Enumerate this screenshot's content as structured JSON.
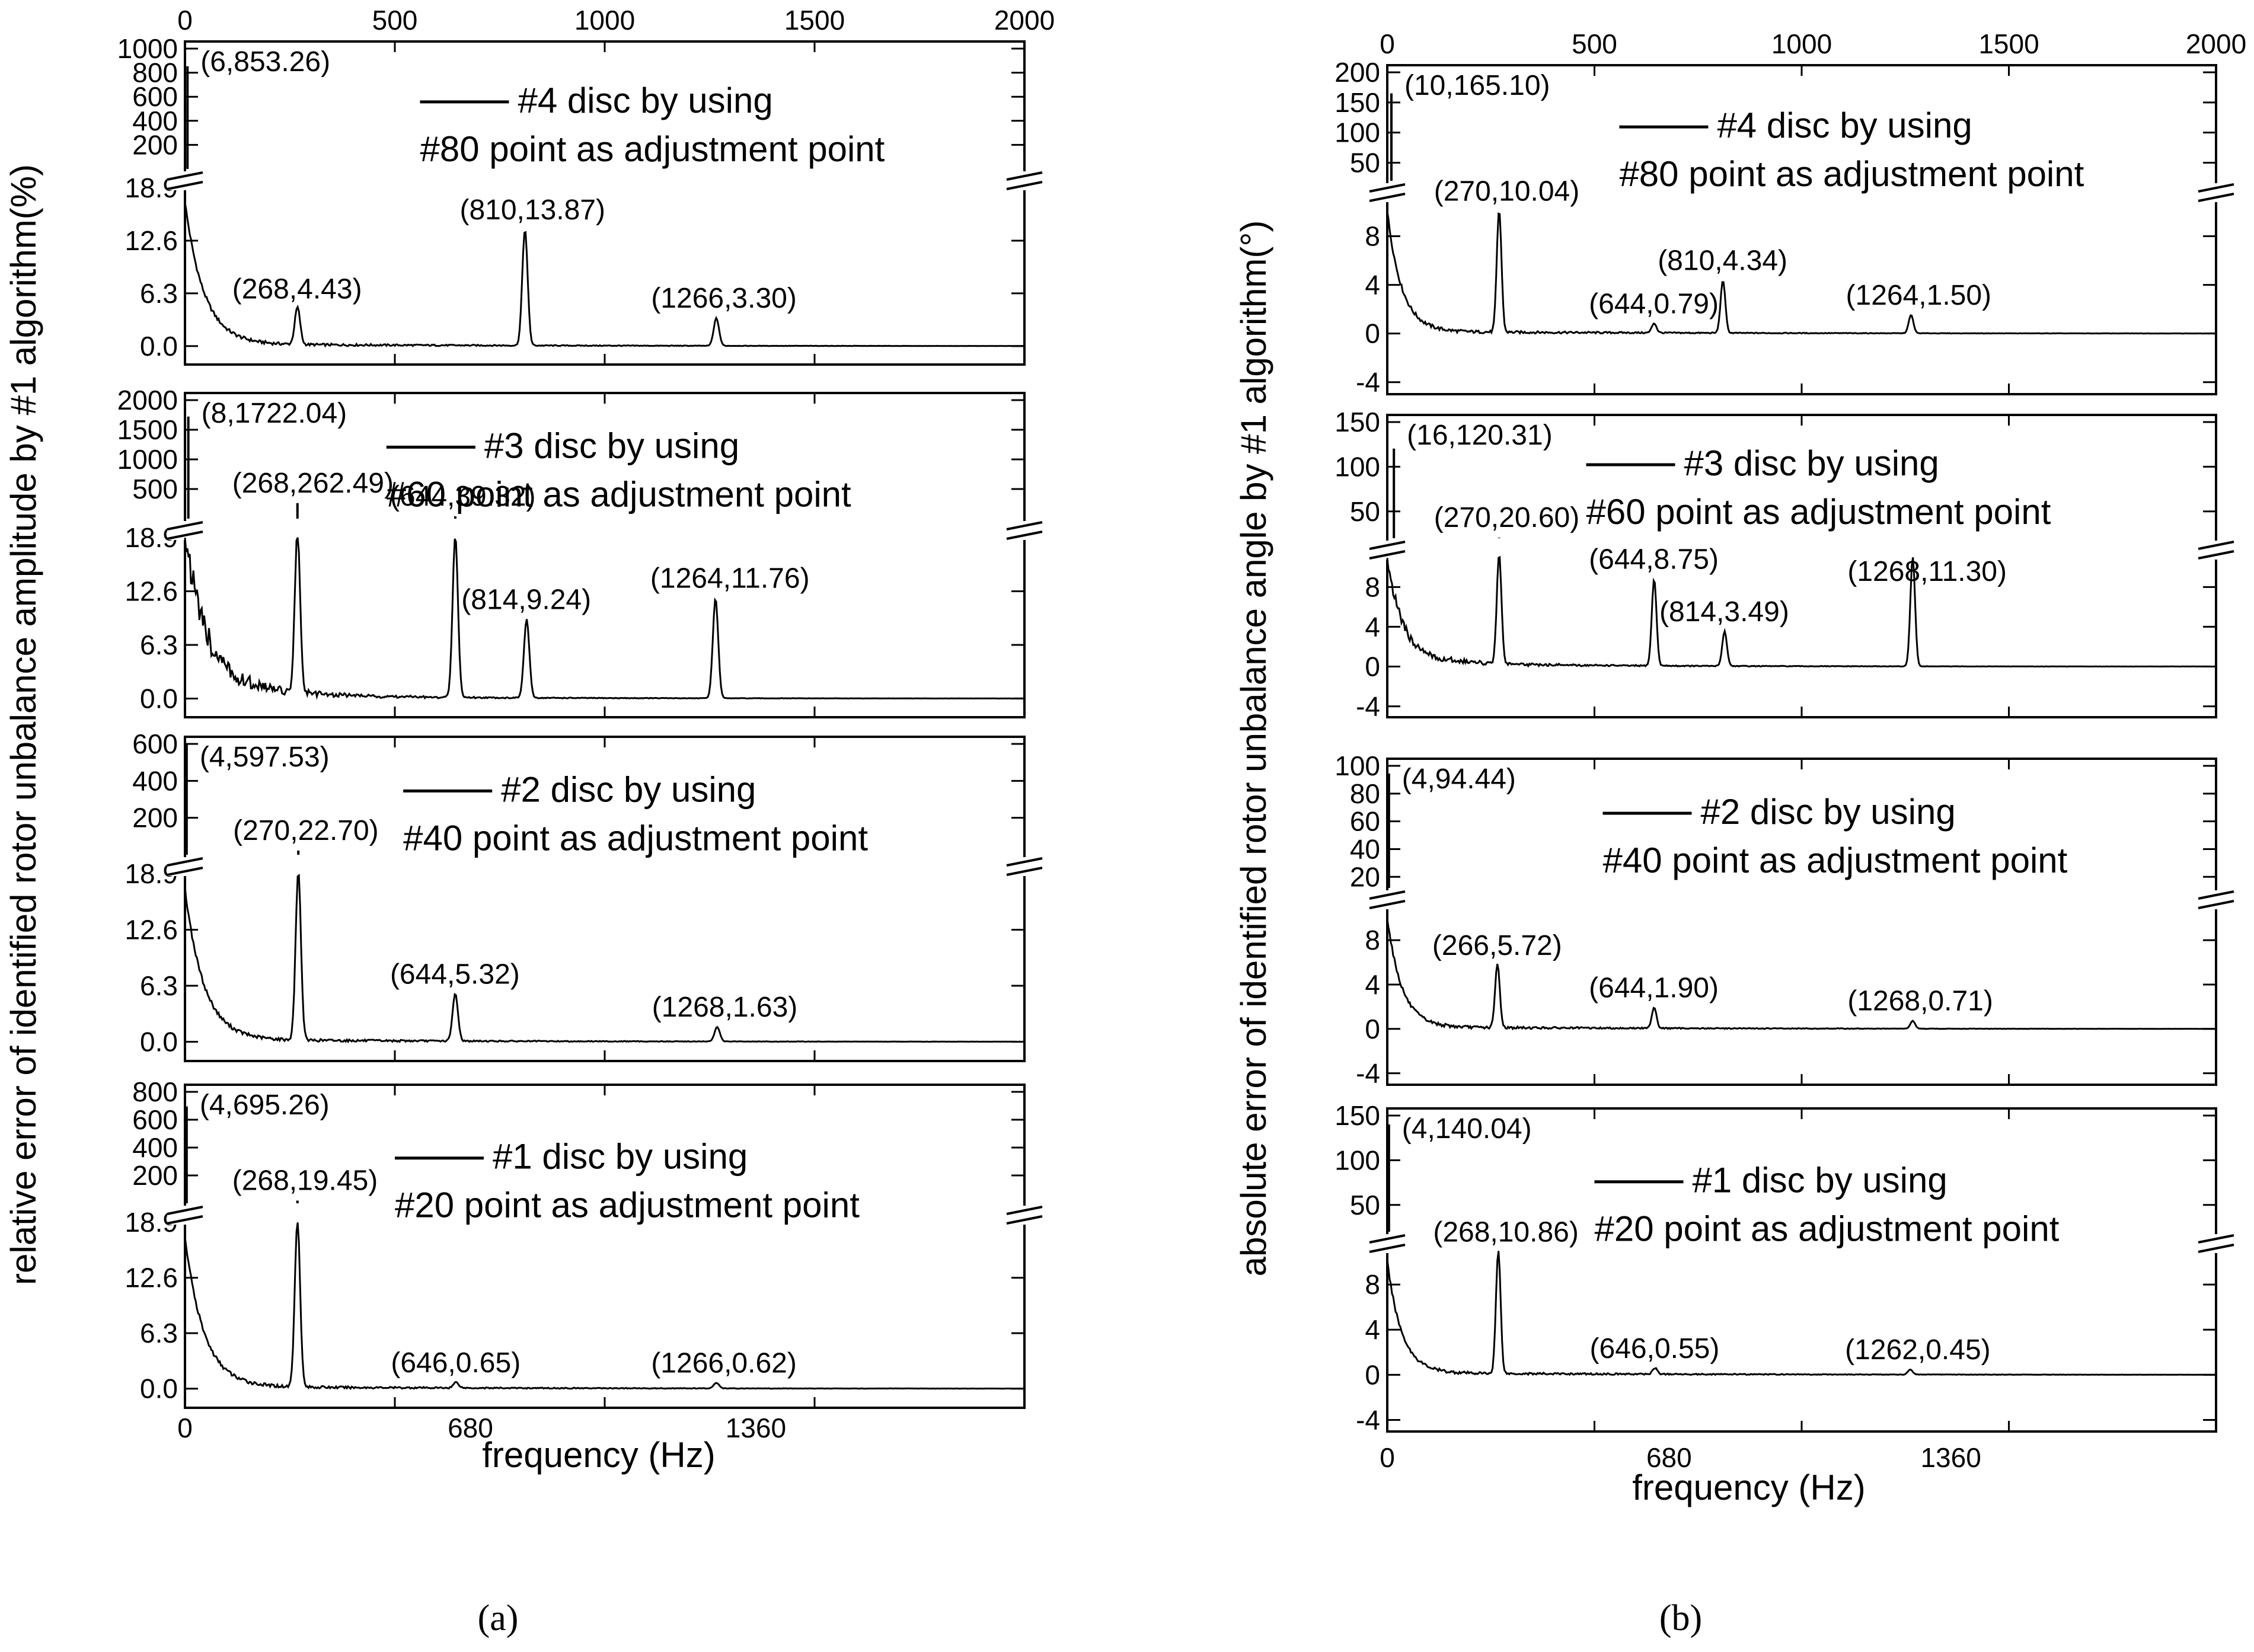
{
  "chart_data": {
    "type": "line",
    "x_label": "frequency (Hz)",
    "panels": [
      {
        "caption": "(a)",
        "y_label": "relative error of identified rotor unbalance amplitude by #1 algorithm(%)",
        "top_axis_ticks": [
          0,
          500,
          1000,
          1500,
          2000
        ],
        "top_axis_labels": [
          "0",
          "500",
          "1000",
          "1500",
          "2000"
        ],
        "bottom_axis_ticks": [
          0,
          680,
          1360
        ],
        "bottom_axis_labels": [
          "0",
          "680",
          "1360"
        ],
        "xlim": [
          0,
          2000
        ],
        "subplots": [
          {
            "legend": [
              "#4 disc by using",
              "#80 point as adjustment point"
            ],
            "upper_ticks": [
              200,
              400,
              600,
              800,
              1000
            ],
            "upper_labels": [
              "200",
              "400",
              "600",
              "800",
              "1000"
            ],
            "upper_range": [
              0,
              1000
            ],
            "lower_ticks": [
              0,
              6.3,
              12.6,
              18.9
            ],
            "lower_labels": [
              "0.0",
              "6.3",
              "12.6",
              "18.9"
            ],
            "lower_range": [
              -1.5,
              18.9
            ],
            "peaks": [
              {
                "x": 6,
                "y": 853.26,
                "label": "(6,853.26)"
              },
              {
                "x": 268,
                "y": 4.43,
                "label": "(268,4.43)"
              },
              {
                "x": 810,
                "y": 13.87,
                "label": "(810,13.87)"
              },
              {
                "x": 1266,
                "y": 3.3,
                "label": "(1266,3.30)"
              }
            ]
          },
          {
            "legend": [
              "#3 disc by using",
              "#60 point as adjustment point"
            ],
            "upper_ticks": [
              500,
              1000,
              1500,
              2000
            ],
            "upper_labels": [
              "500",
              "1000",
              "1500",
              "2000"
            ],
            "upper_range": [
              0,
              2000
            ],
            "lower_ticks": [
              0,
              6.3,
              12.6,
              18.9
            ],
            "lower_labels": [
              "0.0",
              "6.3",
              "12.6",
              "18.9"
            ],
            "lower_range": [
              -1.5,
              18.9
            ],
            "peaks": [
              {
                "x": 8,
                "y": 1722.04,
                "label": "(8,1722.04)"
              },
              {
                "x": 268,
                "y": 262.49,
                "label": "(268,262.49)"
              },
              {
                "x": 644,
                "y": 39.32,
                "label": "(644,39.32)"
              },
              {
                "x": 814,
                "y": 9.24,
                "label": "(814,9.24)"
              },
              {
                "x": 1264,
                "y": 11.76,
                "label": "(1264,11.76)"
              }
            ]
          },
          {
            "legend": [
              "#2 disc by using",
              "#40 point as adjustment point"
            ],
            "upper_ticks": [
              200,
              400,
              600
            ],
            "upper_labels": [
              "200",
              "400",
              "600"
            ],
            "upper_range": [
              0,
              600
            ],
            "lower_ticks": [
              0,
              6.3,
              12.6,
              18.9
            ],
            "lower_labels": [
              "0.0",
              "6.3",
              "12.6",
              "18.9"
            ],
            "lower_range": [
              -1.5,
              18.9
            ],
            "peaks": [
              {
                "x": 4,
                "y": 597.53,
                "label": "(4,597.53)"
              },
              {
                "x": 270,
                "y": 22.7,
                "label": "(270,22.70)"
              },
              {
                "x": 644,
                "y": 5.32,
                "label": "(644,5.32)"
              },
              {
                "x": 1268,
                "y": 1.63,
                "label": "(1268,1.63)"
              }
            ]
          },
          {
            "legend": [
              "#1 disc by using",
              "#20 point as adjustment point"
            ],
            "upper_ticks": [
              200,
              400,
              600,
              800
            ],
            "upper_labels": [
              "200",
              "400",
              "600",
              "800"
            ],
            "upper_range": [
              0,
              800
            ],
            "lower_ticks": [
              0,
              6.3,
              12.6,
              18.9
            ],
            "lower_labels": [
              "0.0",
              "6.3",
              "12.6",
              "18.9"
            ],
            "lower_range": [
              -1.5,
              18.9
            ],
            "peaks": [
              {
                "x": 4,
                "y": 695.26,
                "label": "(4,695.26)"
              },
              {
                "x": 268,
                "y": 19.45,
                "label": "(268,19.45)"
              },
              {
                "x": 646,
                "y": 0.65,
                "label": "(646,0.65)"
              },
              {
                "x": 1266,
                "y": 0.62,
                "label": "(1266,0.62)"
              }
            ]
          }
        ]
      },
      {
        "caption": "(b)",
        "y_label": "absolute error of identified rotor unbalance angle by #1 algorithm(°)",
        "top_axis_ticks": [
          0,
          500,
          1000,
          1500,
          2000
        ],
        "top_axis_labels": [
          "0",
          "500",
          "1000",
          "1500",
          "2000"
        ],
        "bottom_axis_ticks": [
          0,
          680,
          1360
        ],
        "bottom_axis_labels": [
          "0",
          "680",
          "1360"
        ],
        "xlim": [
          0,
          2000
        ],
        "subplots": [
          {
            "legend": [
              "#4 disc by using",
              "#80 point as adjustment point"
            ],
            "upper_ticks": [
              50,
              100,
              150,
              200
            ],
            "upper_labels": [
              "50",
              "100",
              "150",
              "200"
            ],
            "upper_range": [
              20,
              200
            ],
            "lower_ticks": [
              -4,
              0,
              4,
              8
            ],
            "lower_labels": [
              "-4",
              "0",
              "4",
              "8"
            ],
            "lower_range": [
              -4.5,
              11
            ],
            "peaks": [
              {
                "x": 10,
                "y": 165.1,
                "label": "(10,165.10)"
              },
              {
                "x": 270,
                "y": 10.04,
                "label": "(270,10.04)"
              },
              {
                "x": 644,
                "y": 0.79,
                "label": "(644,0.79)"
              },
              {
                "x": 810,
                "y": 4.34,
                "label": "(810,4.34)"
              },
              {
                "x": 1264,
                "y": 1.5,
                "label": "(1264,1.50)"
              }
            ]
          },
          {
            "legend": [
              "#3 disc by using",
              "#60 point as adjustment point"
            ],
            "upper_ticks": [
              50,
              100,
              150
            ],
            "upper_labels": [
              "50",
              "100",
              "150"
            ],
            "upper_range": [
              20,
              150
            ],
            "lower_ticks": [
              -4,
              0,
              4,
              8
            ],
            "lower_labels": [
              "-4",
              "0",
              "4",
              "8"
            ],
            "lower_range": [
              -4.5,
              11
            ],
            "peaks": [
              {
                "x": 16,
                "y": 120.31,
                "label": "(16,120.31)"
              },
              {
                "x": 270,
                "y": 20.6,
                "label": "(270,20.60)"
              },
              {
                "x": 644,
                "y": 8.75,
                "label": "(644,8.75)"
              },
              {
                "x": 814,
                "y": 3.49,
                "label": "(814,3.49)"
              },
              {
                "x": 1268,
                "y": 11.3,
                "label": "(1268,11.30)"
              }
            ]
          },
          {
            "legend": [
              "#2 disc by using",
              "#40 point as adjustment point"
            ],
            "upper_ticks": [
              20,
              40,
              60,
              80,
              100
            ],
            "upper_labels": [
              "20",
              "40",
              "60",
              "80",
              "100"
            ],
            "upper_range": [
              12,
              100
            ],
            "lower_ticks": [
              -4,
              0,
              4,
              8
            ],
            "lower_labels": [
              "-4",
              "0",
              "4",
              "8"
            ],
            "lower_range": [
              -4.5,
              11
            ],
            "peaks": [
              {
                "x": 4,
                "y": 94.44,
                "label": "(4,94.44)"
              },
              {
                "x": 266,
                "y": 5.72,
                "label": "(266,5.72)"
              },
              {
                "x": 644,
                "y": 1.9,
                "label": "(644,1.90)"
              },
              {
                "x": 1268,
                "y": 0.71,
                "label": "(1268,0.71)"
              }
            ]
          },
          {
            "legend": [
              "#1 disc by using",
              "#20 point as adjustment point"
            ],
            "upper_ticks": [
              50,
              100,
              150
            ],
            "upper_labels": [
              "50",
              "100",
              "150"
            ],
            "upper_range": [
              20,
              150
            ],
            "lower_ticks": [
              -4,
              0,
              4,
              8
            ],
            "lower_labels": [
              "-4",
              "0",
              "4",
              "8"
            ],
            "lower_range": [
              -4.5,
              11
            ],
            "peaks": [
              {
                "x": 4,
                "y": 140.04,
                "label": "(4,140.04)"
              },
              {
                "x": 268,
                "y": 10.86,
                "label": "(268,10.86)"
              },
              {
                "x": 646,
                "y": 0.55,
                "label": "(646,0.55)"
              },
              {
                "x": 1262,
                "y": 0.45,
                "label": "(1262,0.45)"
              }
            ]
          }
        ]
      }
    ]
  }
}
